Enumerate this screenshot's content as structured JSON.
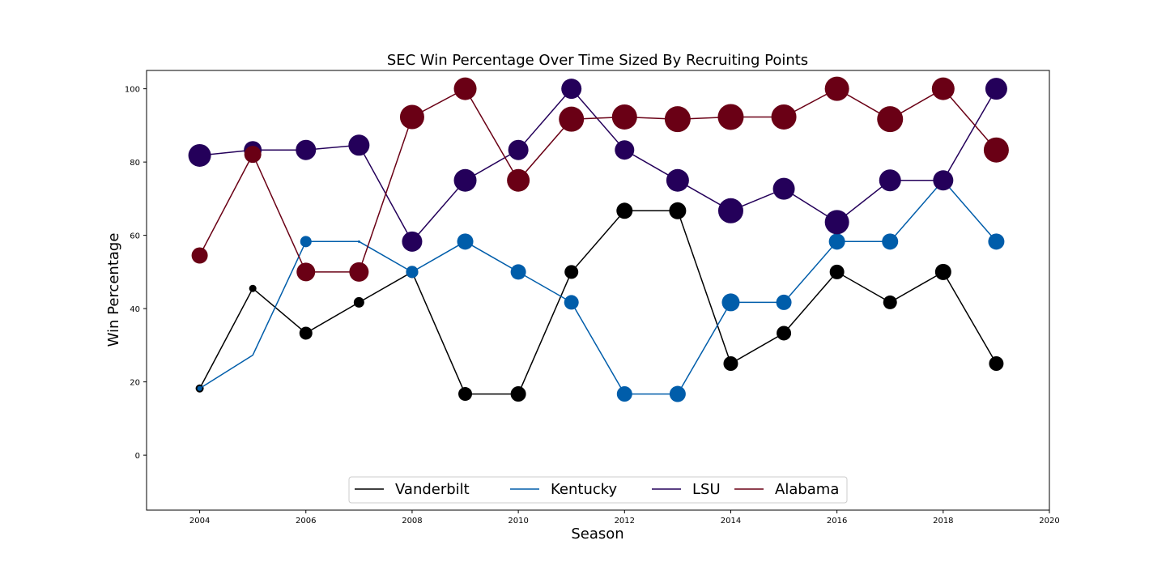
{
  "chart_data": {
    "type": "line",
    "title": "SEC Win Percentage Over Time Sized By Recruiting Points",
    "xlabel": "Season",
    "ylabel": "Win Percentage",
    "xlim": [
      2003,
      2020
    ],
    "ylim": [
      -15,
      105
    ],
    "x_ticks": [
      2004,
      2006,
      2008,
      2010,
      2012,
      2014,
      2016,
      2018,
      2020
    ],
    "y_ticks": [
      0,
      20,
      40,
      60,
      80,
      100
    ],
    "grid": false,
    "legend_position": "bottom-center",
    "marker_size_note": "sized by recruiting points",
    "x": [
      2004,
      2005,
      2006,
      2007,
      2008,
      2009,
      2010,
      2011,
      2012,
      2013,
      2014,
      2015,
      2016,
      2017,
      2018,
      2019
    ],
    "series": [
      {
        "name": "Vanderbilt",
        "color": "#000000",
        "values": [
          18.2,
          45.5,
          33.3,
          41.7,
          50.0,
          16.7,
          16.7,
          50.0,
          66.7,
          66.7,
          25.0,
          33.3,
          50.0,
          41.7,
          50.0,
          25.0
        ],
        "sizes": [
          5,
          4.5,
          8,
          6.5,
          7.5,
          8.5,
          9.5,
          8.5,
          10,
          10.5,
          9,
          9,
          9,
          8.5,
          10,
          9
        ]
      },
      {
        "name": "Kentucky",
        "color": "#005daa",
        "values": [
          18.2,
          27.3,
          58.3,
          58.3,
          50.0,
          58.3,
          50.0,
          41.7,
          16.7,
          16.7,
          41.7,
          41.7,
          58.3,
          58.3,
          75.0,
          58.3
        ],
        "sizes": [
          3,
          0,
          7,
          1.5,
          7.5,
          10,
          9.5,
          9,
          9.5,
          10,
          11,
          9.5,
          10,
          10,
          5,
          10
        ]
      },
      {
        "name": "LSU",
        "color": "#24005a",
        "values": [
          81.8,
          83.3,
          83.3,
          84.6,
          58.3,
          75.0,
          83.3,
          100.0,
          83.3,
          75.0,
          66.7,
          72.7,
          63.6,
          75.0,
          75.0,
          100.0
        ],
        "sizes": [
          14,
          11,
          12.5,
          13,
          12.5,
          14,
          12.5,
          12.5,
          12,
          14,
          15.5,
          13.5,
          15,
          13.5,
          12.5,
          13.5
        ]
      },
      {
        "name": "Alabama",
        "color": "#6a0015",
        "values": [
          54.5,
          82.1,
          50.0,
          50.0,
          92.3,
          100.0,
          75.0,
          91.7,
          92.3,
          91.7,
          92.3,
          92.3,
          100.0,
          91.7,
          100.0,
          83.3
        ],
        "sizes": [
          10,
          10.5,
          11.5,
          12,
          15,
          14,
          14,
          15.5,
          15.5,
          16,
          16,
          15.5,
          15,
          16,
          14,
          15.5
        ]
      }
    ]
  }
}
